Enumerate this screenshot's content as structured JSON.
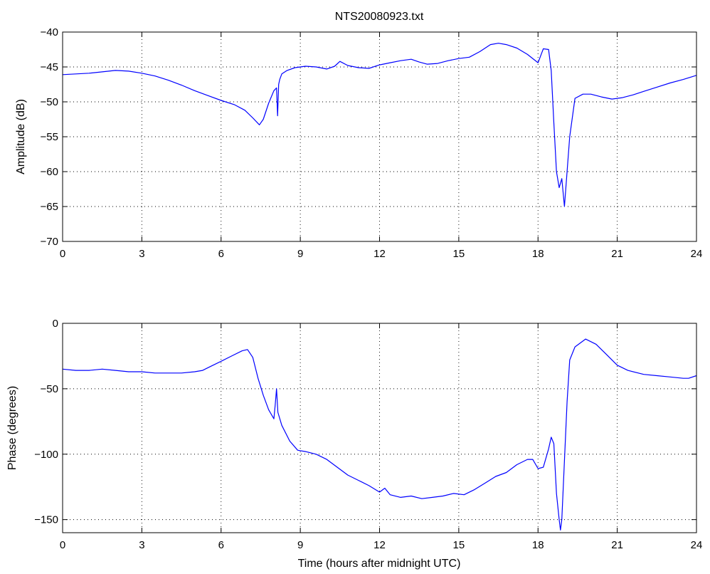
{
  "title": "NTS20080923.txt",
  "colors": {
    "series": "#0000ff",
    "axes": "#000000",
    "background": "#ffffff"
  },
  "chart_data": [
    {
      "type": "line",
      "title": "NTS20080923.txt",
      "xlabel": "",
      "ylabel": "Amplitude (dB)",
      "xlim": [
        0,
        24
      ],
      "ylim": [
        -70,
        -40
      ],
      "xticks": [
        "0",
        "3",
        "6",
        "9",
        "12",
        "15",
        "18",
        "21",
        "24"
      ],
      "yticks": [
        "-70",
        "-65",
        "-60",
        "-55",
        "-50",
        "-45",
        "-40"
      ],
      "grid": true,
      "series": [
        {
          "x": [
            0,
            0.5,
            1,
            1.5,
            2,
            2.5,
            3,
            3.5,
            4,
            4.5,
            5,
            5.5,
            6,
            6.5,
            6.9,
            7.2,
            7.45,
            7.6,
            7.8,
            8.0,
            8.1,
            8.14,
            8.18,
            8.22,
            8.3,
            8.5,
            8.8,
            9.2,
            9.6,
            10.0,
            10.3,
            10.5,
            10.8,
            11.2,
            11.6,
            12.0,
            12.4,
            12.8,
            13.2,
            13.5,
            13.8,
            14.2,
            14.6,
            15.0,
            15.4,
            15.8,
            16.2,
            16.5,
            16.8,
            17.2,
            17.6,
            18.0,
            18.2,
            18.4,
            18.5,
            18.6,
            18.7,
            18.8,
            18.9,
            19.0,
            19.1,
            19.2,
            19.4,
            19.7,
            20.0,
            20.4,
            20.8,
            21.2,
            21.6,
            22.0,
            22.5,
            23.0,
            23.5,
            24.0
          ],
          "y": [
            -46.1,
            -46.0,
            -45.9,
            -45.7,
            -45.5,
            -45.6,
            -45.9,
            -46.3,
            -46.9,
            -47.6,
            -48.4,
            -49.1,
            -49.8,
            -50.4,
            -51.2,
            -52.3,
            -53.3,
            -52.5,
            -50.2,
            -48.4,
            -48.0,
            -52.0,
            -47.5,
            -46.8,
            -46.0,
            -45.5,
            -45.1,
            -44.9,
            -45.0,
            -45.3,
            -44.9,
            -44.2,
            -44.8,
            -45.1,
            -45.2,
            -44.7,
            -44.4,
            -44.1,
            -43.9,
            -44.3,
            -44.6,
            -44.5,
            -44.1,
            -43.8,
            -43.6,
            -42.8,
            -41.8,
            -41.6,
            -41.8,
            -42.3,
            -43.2,
            -44.4,
            -42.4,
            -42.5,
            -45.5,
            -53.0,
            -60.0,
            -62.3,
            -61.0,
            -65.0,
            -60.0,
            -55.0,
            -49.5,
            -48.9,
            -48.9,
            -49.3,
            -49.6,
            -49.4,
            -49.0,
            -48.5,
            -47.9,
            -47.3,
            -46.8,
            -46.2
          ]
        }
      ]
    },
    {
      "type": "line",
      "title": "",
      "xlabel": "Time (hours after midnight UTC)",
      "ylabel": "Phase (degrees)",
      "xlim": [
        0,
        24
      ],
      "ylim": [
        -160,
        0
      ],
      "xticks": [
        "0",
        "3",
        "6",
        "9",
        "12",
        "15",
        "18",
        "21",
        "24"
      ],
      "yticks": [
        "-150",
        "-100",
        "-50",
        "0"
      ],
      "grid": true,
      "series": [
        {
          "x": [
            0,
            0.5,
            1,
            1.5,
            2,
            2.5,
            3,
            3.5,
            4,
            4.5,
            5,
            5.3,
            5.6,
            6.0,
            6.4,
            6.8,
            7.0,
            7.2,
            7.4,
            7.6,
            7.8,
            8.0,
            8.05,
            8.1,
            8.15,
            8.3,
            8.6,
            8.9,
            9.2,
            9.6,
            10.0,
            10.4,
            10.8,
            11.2,
            11.6,
            12.0,
            12.2,
            12.4,
            12.8,
            13.2,
            13.6,
            14.0,
            14.4,
            14.8,
            15.2,
            15.6,
            16.0,
            16.4,
            16.8,
            17.2,
            17.6,
            17.8,
            18.0,
            18.2,
            18.4,
            18.5,
            18.6,
            18.7,
            18.8,
            18.85,
            18.9,
            19.0,
            19.1,
            19.2,
            19.4,
            19.8,
            20.2,
            20.6,
            21.0,
            21.4,
            22.0,
            22.5,
            23.0,
            23.5,
            23.7,
            24.0
          ],
          "y": [
            -35,
            -36,
            -36,
            -35,
            -36,
            -37,
            -37,
            -38,
            -38,
            -38,
            -37,
            -36,
            -33,
            -29,
            -25,
            -21,
            -20,
            -26,
            -42,
            -55,
            -66,
            -73,
            -62,
            -50,
            -68,
            -78,
            -90,
            -97,
            -98,
            -100,
            -104,
            -110,
            -116,
            -120,
            -124,
            -129,
            -126,
            -131,
            -133,
            -132,
            -134,
            -133,
            -132,
            -130,
            -131,
            -127,
            -122,
            -117,
            -114,
            -108,
            -104,
            -104,
            -111,
            -110,
            -96,
            -87,
            -92,
            -130,
            -150,
            -158,
            -150,
            -105,
            -60,
            -28,
            -18,
            -12,
            -16,
            -24,
            -32,
            -36,
            -39,
            -40,
            -41,
            -42,
            -42,
            -40
          ]
        }
      ]
    }
  ]
}
